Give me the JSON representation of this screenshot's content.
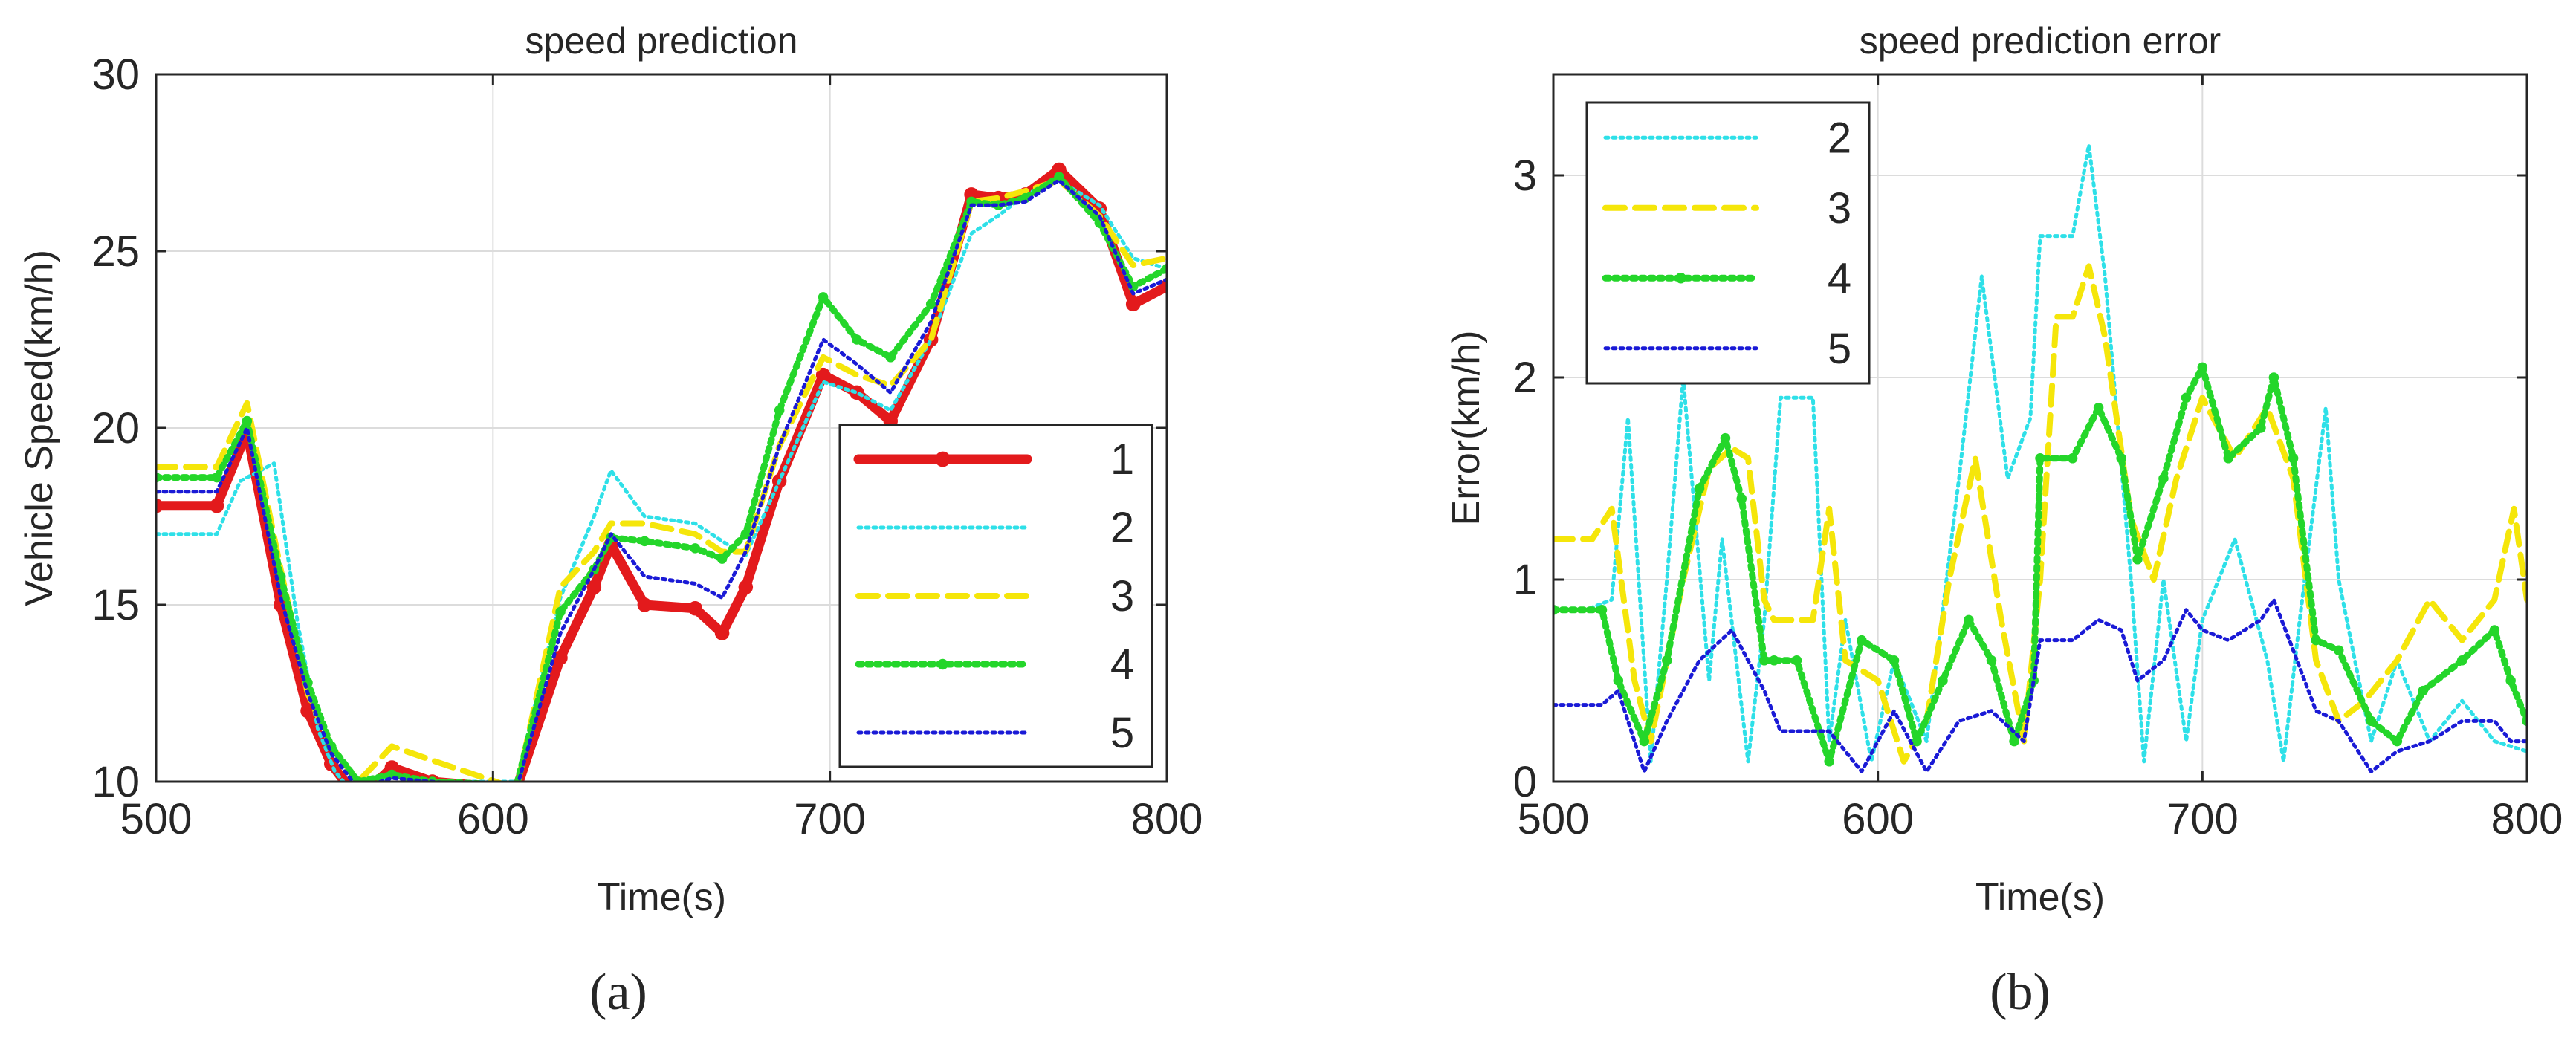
{
  "chart_data": [
    {
      "type": "line",
      "title": "speed prediction",
      "xlabel": "Time(s)",
      "ylabel": "Vehicle Speed(km/h)",
      "panel_label": "(a)",
      "xlim": [
        500,
        800
      ],
      "ylim": [
        10,
        30
      ],
      "xticks": [
        500,
        600,
        700,
        800
      ],
      "yticks": [
        10,
        15,
        20,
        25,
        30
      ],
      "grid": true,
      "legend_position": "bottom-right",
      "series": [
        {
          "name": "1",
          "color": "#e31a1c",
          "style": "solid-dot",
          "x": [
            500,
            518,
            527,
            537,
            545,
            552,
            560,
            570,
            582,
            607,
            620,
            630,
            635,
            645,
            660,
            668,
            675,
            685,
            698,
            708,
            718,
            730,
            742,
            750,
            758,
            768,
            780,
            790,
            800
          ],
          "y": [
            17.8,
            17.8,
            19.9,
            15.0,
            12.0,
            10.5,
            9.5,
            10.4,
            10.0,
            9.8,
            13.5,
            15.5,
            16.7,
            15.0,
            14.9,
            14.2,
            15.5,
            18.5,
            21.5,
            21.0,
            20.2,
            22.5,
            26.6,
            26.5,
            26.6,
            27.3,
            26.2,
            23.5,
            24.0
          ]
        },
        {
          "name": "2",
          "color": "#2ee0e8",
          "style": "dotted",
          "x": [
            500,
            518,
            525,
            535,
            542,
            548,
            553,
            560,
            570,
            582,
            607,
            620,
            630,
            635,
            645,
            660,
            668,
            675,
            685,
            698,
            708,
            718,
            730,
            742,
            750,
            758,
            768,
            780,
            790,
            800
          ],
          "y": [
            17.0,
            17.0,
            18.5,
            19.0,
            14.5,
            11.5,
            10.3,
            9.5,
            10.2,
            10.0,
            10.0,
            15.2,
            17.5,
            18.8,
            17.5,
            17.3,
            16.8,
            16.4,
            18.5,
            21.3,
            21.0,
            20.5,
            22.5,
            25.5,
            26.0,
            26.6,
            27.0,
            26.3,
            24.8,
            24.5
          ]
        },
        {
          "name": "3",
          "color": "#f5e60a",
          "style": "dashed",
          "x": [
            500,
            518,
            527,
            537,
            545,
            552,
            560,
            565,
            570,
            582,
            607,
            620,
            630,
            635,
            645,
            660,
            668,
            675,
            685,
            698,
            708,
            718,
            730,
            742,
            750,
            758,
            768,
            780,
            790,
            800
          ],
          "y": [
            18.9,
            18.9,
            20.7,
            16.0,
            12.5,
            11.0,
            10.0,
            10.5,
            11.0,
            10.6,
            9.8,
            15.5,
            16.5,
            17.3,
            17.3,
            17.0,
            16.5,
            16.5,
            19.5,
            22.0,
            21.5,
            21.2,
            22.5,
            26.4,
            26.5,
            26.7,
            27.0,
            26.0,
            24.6,
            24.8
          ]
        },
        {
          "name": "4",
          "color": "#24d62a",
          "style": "dotted-dot",
          "x": [
            500,
            518,
            527,
            537,
            545,
            552,
            560,
            570,
            582,
            607,
            620,
            630,
            635,
            645,
            660,
            668,
            675,
            685,
            698,
            708,
            718,
            730,
            742,
            750,
            758,
            768,
            780,
            790,
            800
          ],
          "y": [
            18.6,
            18.6,
            20.2,
            15.8,
            12.8,
            11.0,
            10.0,
            10.2,
            10.0,
            9.9,
            14.8,
            16.0,
            16.9,
            16.8,
            16.6,
            16.3,
            17.0,
            20.5,
            23.7,
            22.5,
            22.0,
            23.5,
            26.4,
            26.3,
            26.5,
            27.1,
            25.8,
            24.0,
            24.5
          ]
        },
        {
          "name": "5",
          "color": "#1a1ad6",
          "style": "dotted",
          "x": [
            500,
            518,
            527,
            537,
            545,
            552,
            560,
            570,
            582,
            607,
            620,
            630,
            635,
            645,
            660,
            668,
            675,
            685,
            698,
            708,
            718,
            730,
            742,
            750,
            758,
            768,
            780,
            790,
            800
          ],
          "y": [
            18.2,
            18.2,
            20.0,
            15.2,
            12.5,
            10.8,
            9.8,
            10.1,
            10.0,
            9.8,
            14.2,
            16.0,
            17.0,
            15.8,
            15.6,
            15.2,
            16.5,
            19.5,
            22.5,
            21.8,
            21.0,
            23.0,
            26.3,
            26.3,
            26.4,
            27.0,
            26.0,
            23.8,
            24.2
          ]
        }
      ]
    },
    {
      "type": "line",
      "title": "speed prediction error",
      "xlabel": "Time(s)",
      "ylabel": "Error(km/h)",
      "panel_label": "(b)",
      "xlim": [
        500,
        800
      ],
      "ylim": [
        0,
        3.5
      ],
      "xticks": [
        500,
        600,
        700,
        800
      ],
      "yticks": [
        0,
        1,
        2,
        3
      ],
      "grid": true,
      "legend_position": "top-left",
      "series": [
        {
          "name": "2",
          "color": "#2ee0e8",
          "style": "dotted",
          "x": [
            500,
            510,
            518,
            523,
            530,
            535,
            540,
            548,
            552,
            560,
            565,
            570,
            580,
            585,
            590,
            598,
            605,
            615,
            625,
            632,
            640,
            647,
            650,
            660,
            665,
            670,
            678,
            682,
            688,
            695,
            700,
            710,
            720,
            725,
            730,
            738,
            742,
            752,
            760,
            770,
            780,
            790,
            800
          ],
          "y": [
            0.85,
            0.85,
            0.9,
            1.8,
            0.1,
            1.0,
            2.0,
            0.5,
            1.2,
            0.1,
            0.8,
            1.9,
            1.9,
            0.2,
            0.8,
            0.1,
            0.6,
            0.2,
            1.5,
            2.5,
            1.5,
            1.8,
            2.7,
            2.7,
            3.15,
            2.5,
            1.0,
            0.1,
            1.0,
            0.2,
            0.8,
            1.2,
            0.6,
            0.1,
            0.8,
            1.85,
            1.0,
            0.2,
            0.6,
            0.2,
            0.4,
            0.2,
            0.15
          ]
        },
        {
          "name": "3",
          "color": "#f5e60a",
          "style": "dashed",
          "x": [
            500,
            512,
            518,
            525,
            530,
            540,
            548,
            555,
            560,
            565,
            568,
            575,
            580,
            585,
            590,
            600,
            608,
            615,
            622,
            630,
            638,
            645,
            650,
            655,
            660,
            665,
            670,
            678,
            685,
            692,
            700,
            710,
            720,
            728,
            735,
            742,
            750,
            760,
            770,
            780,
            790,
            796,
            800
          ],
          "y": [
            1.2,
            1.2,
            1.35,
            0.5,
            0.2,
            1.0,
            1.55,
            1.65,
            1.6,
            0.9,
            0.8,
            0.8,
            0.8,
            1.35,
            0.6,
            0.5,
            0.1,
            0.3,
            1.0,
            1.6,
            0.8,
            0.2,
            1.0,
            2.3,
            2.3,
            2.55,
            2.2,
            1.3,
            1.0,
            1.5,
            1.9,
            1.6,
            1.85,
            1.5,
            0.6,
            0.3,
            0.4,
            0.6,
            0.9,
            0.7,
            0.9,
            1.35,
            0.9
          ]
        },
        {
          "name": "4",
          "color": "#24d62a",
          "style": "dotted-dot",
          "x": [
            500,
            515,
            520,
            528,
            535,
            545,
            553,
            558,
            565,
            568,
            575,
            585,
            595,
            605,
            612,
            620,
            628,
            635,
            642,
            648,
            650,
            660,
            668,
            675,
            680,
            688,
            695,
            700,
            708,
            718,
            722,
            728,
            735,
            742,
            752,
            760,
            768,
            780,
            790,
            795,
            800
          ],
          "y": [
            0.85,
            0.85,
            0.5,
            0.2,
            0.6,
            1.45,
            1.7,
            1.4,
            0.6,
            0.6,
            0.6,
            0.1,
            0.7,
            0.6,
            0.2,
            0.5,
            0.8,
            0.6,
            0.2,
            0.5,
            1.6,
            1.6,
            1.85,
            1.6,
            1.1,
            1.5,
            1.9,
            2.05,
            1.6,
            1.75,
            2.0,
            1.6,
            0.7,
            0.65,
            0.3,
            0.2,
            0.45,
            0.6,
            0.75,
            0.5,
            0.3
          ]
        },
        {
          "name": "5",
          "color": "#1a1ad6",
          "style": "dotted",
          "x": [
            500,
            515,
            520,
            528,
            535,
            545,
            555,
            565,
            570,
            585,
            595,
            605,
            615,
            625,
            635,
            645,
            650,
            660,
            668,
            675,
            680,
            688,
            695,
            700,
            708,
            718,
            722,
            728,
            735,
            742,
            752,
            760,
            770,
            780,
            790,
            795,
            800
          ],
          "y": [
            0.38,
            0.38,
            0.45,
            0.05,
            0.3,
            0.6,
            0.75,
            0.45,
            0.25,
            0.25,
            0.05,
            0.35,
            0.05,
            0.3,
            0.35,
            0.2,
            0.7,
            0.7,
            0.8,
            0.75,
            0.5,
            0.6,
            0.85,
            0.75,
            0.7,
            0.8,
            0.9,
            0.65,
            0.35,
            0.3,
            0.05,
            0.15,
            0.2,
            0.3,
            0.3,
            0.2,
            0.2
          ]
        }
      ]
    }
  ]
}
